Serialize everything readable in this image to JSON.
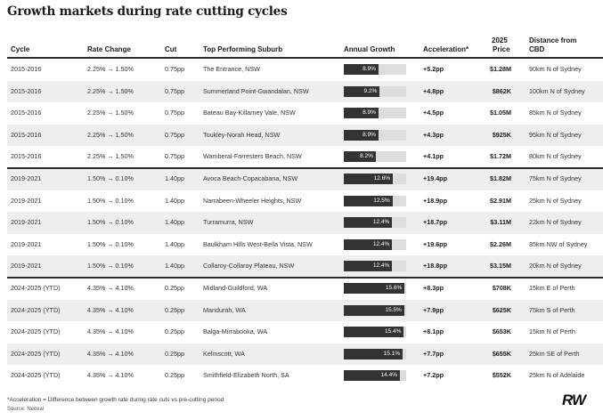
{
  "title": "Growth markets during rate cutting cycles",
  "headers": {
    "cycle": "Cycle",
    "rate_change": "Rate Change",
    "cut": "Cut",
    "suburb": "Top Performing Suburb",
    "annual_growth": "Annual Growth",
    "acceleration": "Acceleration*",
    "price_line1": "2025",
    "price_line2": "Price",
    "distance_line1": "Distance from",
    "distance_line2": "CBD"
  },
  "rows": [
    {
      "cycle": "2015-2016",
      "rate": "2.25% → 1.50%",
      "cut": "0.75pp",
      "suburb": "The Entrance, NSW",
      "growth": "8.9%",
      "growth_value": 8.9,
      "acc": "+5.2pp",
      "price": "$1.28M",
      "distance": "90km N of Sydney"
    },
    {
      "cycle": "2015-2016",
      "rate": "2.25% → 1.50%",
      "cut": "0.75pp",
      "suburb": "Summerland Point-Gwandalan, NSW",
      "growth": "9.2%",
      "growth_value": 9.2,
      "acc": "+4.8pp",
      "price": "$862K",
      "distance": "100km N of Sydney"
    },
    {
      "cycle": "2015-2016",
      "rate": "2.25% → 1.50%",
      "cut": "0.75pp",
      "suburb": "Bateau Bay-Killarney Vale, NSW",
      "growth": "8.9%",
      "growth_value": 8.9,
      "acc": "+4.5pp",
      "price": "$1.05M",
      "distance": "85km N of Sydney"
    },
    {
      "cycle": "2015-2016",
      "rate": "2.25% → 1.50%",
      "cut": "0.75pp",
      "suburb": "Toukley-Norah Head, NSW",
      "growth": "8.9%",
      "growth_value": 8.9,
      "acc": "+4.3pp",
      "price": "$925K",
      "distance": "95km N of Sydney"
    },
    {
      "cycle": "2015-2016",
      "rate": "2.25% → 1.50%",
      "cut": "0.75pp",
      "suburb": "Wamberal-Forresters Beach, NSW",
      "growth": "8.2%",
      "growth_value": 8.2,
      "acc": "+4.1pp",
      "price": "$1.72M",
      "distance": "80km N of Sydney"
    },
    {
      "cycle": "2019-2021",
      "rate": "1.50% → 0.10%",
      "cut": "1.40pp",
      "suburb": "Avoca Beach-Copacabana, NSW",
      "growth": "12.6%",
      "growth_value": 12.6,
      "acc": "+19.4pp",
      "price": "$1.82M",
      "distance": "75km N of Sydney"
    },
    {
      "cycle": "2019-2021",
      "rate": "1.50% → 0.10%",
      "cut": "1.40pp",
      "suburb": "Narrabeen-Wheeler Heights, NSW",
      "growth": "12.5%",
      "growth_value": 12.5,
      "acc": "+18.9pp",
      "price": "$2.91M",
      "distance": "25km N of Sydney"
    },
    {
      "cycle": "2019-2021",
      "rate": "1.50% → 0.10%",
      "cut": "1.40pp",
      "suburb": "Turramurra, NSW",
      "growth": "12.4%",
      "growth_value": 12.4,
      "acc": "+18.7pp",
      "price": "$3.11M",
      "distance": "22km N of Sydney"
    },
    {
      "cycle": "2019-2021",
      "rate": "1.50% → 0.10%",
      "cut": "1.40pp",
      "suburb": "Baulkham Hills West-Bella Vista, NSW",
      "growth": "12.4%",
      "growth_value": 12.4,
      "acc": "+19.6pp",
      "price": "$2.26M",
      "distance": "35km NW of Sydney"
    },
    {
      "cycle": "2019-2021",
      "rate": "1.50% → 0.10%",
      "cut": "1.40pp",
      "suburb": "Collaroy-Collaroy Plateau, NSW",
      "growth": "12.4%",
      "growth_value": 12.4,
      "acc": "+18.8pp",
      "price": "$3.15M",
      "distance": "20km N of Sydney"
    },
    {
      "cycle": "2024-2025 (YTD)",
      "rate": "4.35% → 4.10%",
      "cut": "0.25pp",
      "suburb": "Midland-Guildford, WA",
      "growth": "15.6%",
      "growth_value": 15.6,
      "acc": "+8.3pp",
      "price": "$708K",
      "distance": "15km E of Perth"
    },
    {
      "cycle": "2024-2025 (YTD)",
      "rate": "4.35% → 4.10%",
      "cut": "0.25pp",
      "suburb": "Mandurah, WA",
      "growth": "15.5%",
      "growth_value": 15.5,
      "acc": "+7.9pp",
      "price": "$625K",
      "distance": "75km S of Perth"
    },
    {
      "cycle": "2024-2025 (YTD)",
      "rate": "4.35% → 4.10%",
      "cut": "0.25pp",
      "suburb": "Balga-Mirrabooka, WA",
      "growth": "15.4%",
      "growth_value": 15.4,
      "acc": "+8.1pp",
      "price": "$653K",
      "distance": "15km N of Perth"
    },
    {
      "cycle": "2024-2025 (YTD)",
      "rate": "4.35% → 4.10%",
      "cut": "0.25pp",
      "suburb": "Kelmscott, WA",
      "growth": "15.1%",
      "growth_value": 15.1,
      "acc": "+7.7pp",
      "price": "$655K",
      "distance": "25km SE of Perth"
    },
    {
      "cycle": "2024-2025 (YTD)",
      "rate": "4.35% → 4.10%",
      "cut": "0.25pp",
      "suburb": "Smithfield-Elizabeth North, SA",
      "growth": "14.4%",
      "growth_value": 14.4,
      "acc": "+7.2pp",
      "price": "$552K",
      "distance": "25km N of Adelaide"
    }
  ],
  "bar_scale_max": 16,
  "footnote": "*Acceleration = Difference between growth rate during rate cuts vs pre-cutting period",
  "source": "Source: Neoval",
  "logo": "RW"
}
